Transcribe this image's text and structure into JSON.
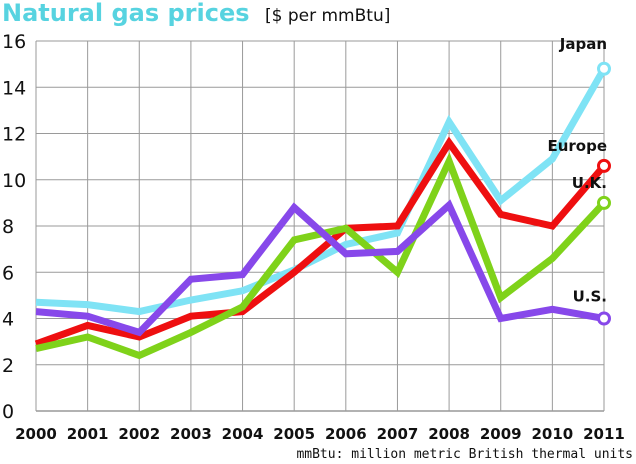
{
  "chart_data": {
    "type": "line",
    "title": "Natural gas prices",
    "subtitle": "[$ per mmBtu]",
    "footnote": "mmBtu: million metric British thermal units",
    "categories": [
      "2000",
      "2001",
      "2002",
      "2003",
      "2004",
      "2005",
      "2006",
      "2007",
      "2008",
      "2009",
      "2010",
      "2011"
    ],
    "y_ticks": [
      "0",
      "2",
      "4",
      "6",
      "8",
      "10",
      "12",
      "14",
      "16"
    ],
    "ylim": [
      0,
      16
    ],
    "grid": true,
    "series": [
      {
        "name": "Japan",
        "color": "#7fe3f5",
        "values": [
          4.7,
          4.6,
          4.3,
          4.8,
          5.2,
          6.1,
          7.2,
          7.7,
          12.5,
          9.1,
          10.9,
          14.8
        ]
      },
      {
        "name": "Europe",
        "color": "#ee0f10",
        "values": [
          2.9,
          3.7,
          3.2,
          4.1,
          4.3,
          6.0,
          7.9,
          8.0,
          11.6,
          8.5,
          8.0,
          10.6
        ]
      },
      {
        "name": "U.K.",
        "color": "#7fd21a",
        "values": [
          2.7,
          3.2,
          2.4,
          3.4,
          4.5,
          7.4,
          7.9,
          6.0,
          10.8,
          4.9,
          6.6,
          9.0
        ]
      },
      {
        "name": "U.S.",
        "color": "#8748ea",
        "values": [
          4.3,
          4.1,
          3.4,
          5.7,
          5.9,
          8.8,
          6.8,
          6.9,
          8.9,
          4.0,
          4.4,
          4.0
        ]
      }
    ]
  }
}
